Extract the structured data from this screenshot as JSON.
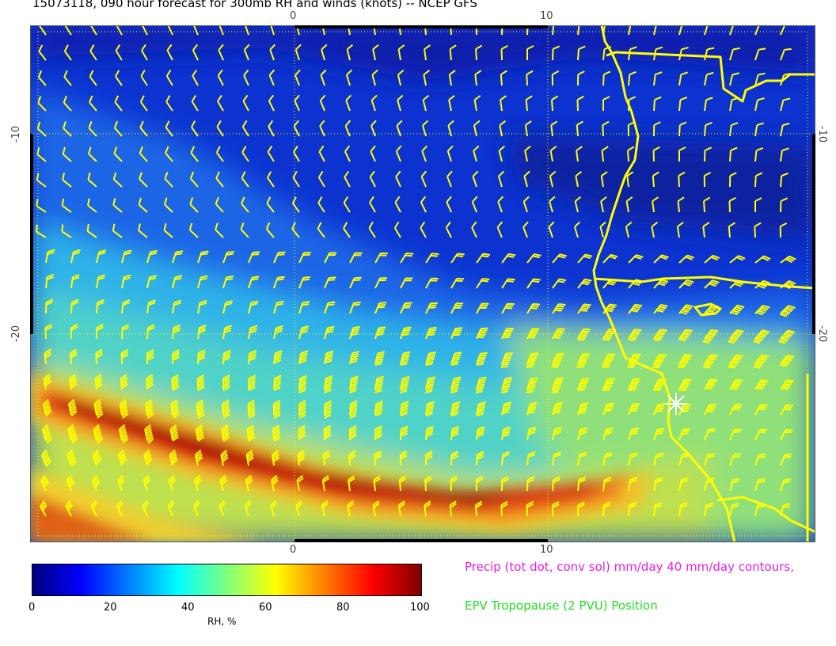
{
  "title": "15073118, 090 hour forecast for 300mb RH and winds (knots) -- NCEP GFS",
  "axes": {
    "top": [
      "0",
      "10"
    ],
    "bottom": [
      "0",
      "10"
    ],
    "left": [
      "-10",
      "-20"
    ],
    "right": [
      "-10",
      "-20"
    ]
  },
  "colorbar": {
    "ticks": [
      "0",
      "20",
      "40",
      "60",
      "80",
      "100"
    ],
    "label": "RH, %",
    "colors": [
      "#00007f",
      "#0000ff",
      "#0080ff",
      "#00ffff",
      "#80ff80",
      "#ffff00",
      "#ff8000",
      "#ff0000",
      "#7f0000"
    ]
  },
  "notes": {
    "precip": "Precip (tot dot, conv sol) mm/day 40 mm/day contours,",
    "epv": "EPV Tropopause (2 PVU) Position"
  },
  "overlay_colors": {
    "barbs": "#ffff00",
    "coast": "#ffff00",
    "gridlines": "#ffff00",
    "marker": "#ffffff"
  }
}
